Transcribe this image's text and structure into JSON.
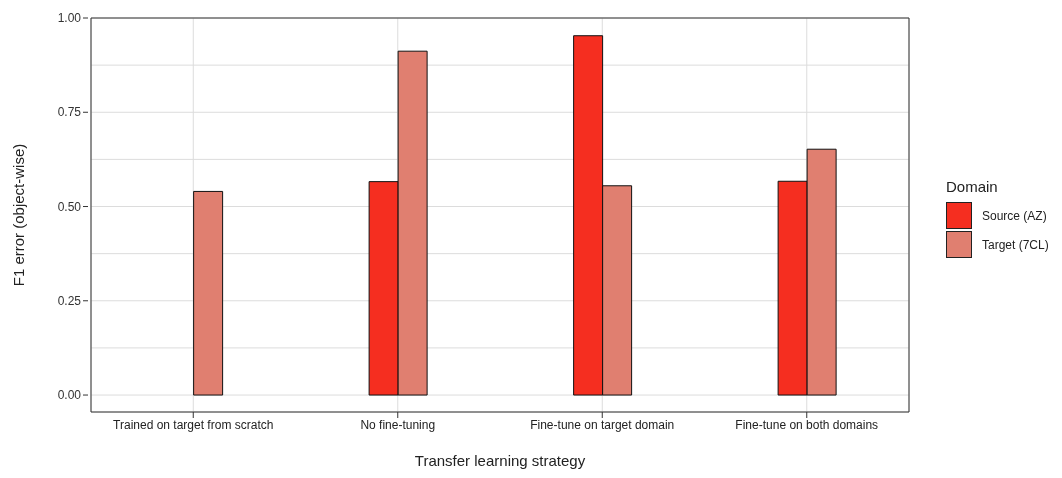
{
  "chart_data": {
    "type": "bar",
    "xlabel": "Transfer learning strategy",
    "ylabel": "F1 error (object-wise)",
    "legend_title": "Domain",
    "categories": [
      "Trained on target from scratch",
      "No fine-tuning",
      "Fine-tune on target domain",
      "Fine-tune on both domains"
    ],
    "series": [
      {
        "name": "Source (AZ)",
        "color": "#f52e20",
        "values": [
          null,
          0.566,
          0.953,
          0.567
        ]
      },
      {
        "name": "Target (7CL)",
        "color": "#e07f70",
        "values": [
          0.54,
          0.912,
          0.555,
          0.652
        ]
      }
    ],
    "ylim": [
      -0.045,
      1.0
    ],
    "yticks": [
      {
        "value": 0,
        "label": "0.00"
      },
      {
        "value": 0.125,
        "label": null
      },
      0.25,
      {
        "value": 0.375,
        "label": null
      },
      {
        "value": 0.5,
        "label": "0.50"
      },
      {
        "value": 0.625,
        "label": null
      },
      0.75,
      {
        "value": 0.875,
        "label": null
      },
      {
        "value": 1,
        "label": "1.00"
      }
    ],
    "grid": true,
    "legend": "right"
  }
}
